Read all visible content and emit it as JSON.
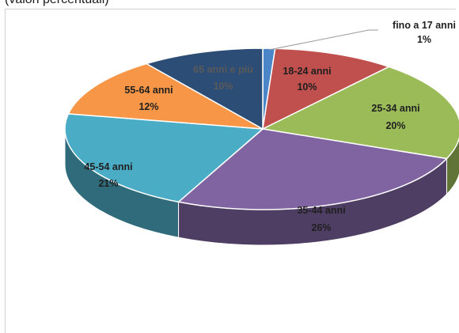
{
  "header": {
    "subtitle": "(valori percentuali)"
  },
  "chart_data": {
    "type": "pie",
    "style": "3d",
    "title": "",
    "legend": "none",
    "categories": [
      "fino a 17 anni",
      "18-24 anni",
      "25-34 anni",
      "35-44 anni",
      "45-54 anni",
      "55-64 anni",
      "65 anni e più"
    ],
    "values": [
      1,
      10,
      20,
      26,
      21,
      12,
      10
    ],
    "value_labels": [
      "1%",
      "10%",
      "20%",
      "26%",
      "21%",
      "12%",
      "10%"
    ],
    "colors": [
      "#4a86c8",
      "#c0504d",
      "#9bbb59",
      "#8064a2",
      "#4bacc6",
      "#f79646",
      "#2c4d75"
    ],
    "label_colors": [
      "#1f1f1f",
      "#1f1f1f",
      "#1f1f1f",
      "#1f1f1f",
      "#1f1f1f",
      "#1f1f1f",
      "#5a5a5a"
    ]
  }
}
